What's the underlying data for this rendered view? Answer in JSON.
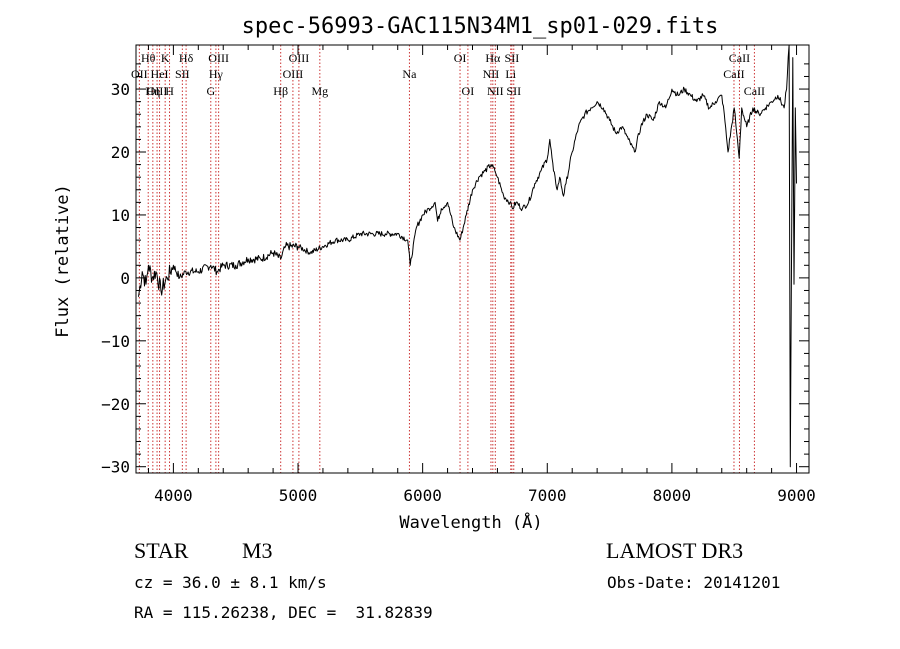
{
  "chart_data": {
    "type": "line",
    "title": "spec-56993-GAC115N34M1_sp01-029.fits",
    "xlabel": "Wavelength (Å)",
    "ylabel": "Flux (relative)",
    "xlim": [
      3700,
      9100
    ],
    "ylim": [
      -31,
      37
    ],
    "xticks": [
      4000,
      5000,
      6000,
      7000,
      8000,
      9000
    ],
    "yticks": [
      -30,
      -20,
      -10,
      0,
      10,
      20,
      30
    ],
    "ytick_labels": [
      "−30",
      "−20",
      "−10",
      "0",
      "10",
      "20",
      "30"
    ],
    "line_color": "#000000",
    "marker_color": "#cc3333",
    "series": [
      {
        "x": [
          3720,
          3750,
          3780,
          3800,
          3830,
          3860,
          3900,
          3950,
          4000,
          4050,
          4100,
          4200,
          4300,
          4350,
          4400,
          4500,
          4600,
          4700,
          4800,
          4860,
          4900,
          5000,
          5100,
          5200,
          5300,
          5400,
          5500,
          5600,
          5700,
          5800,
          5880,
          5900,
          5950,
          6000,
          6050,
          6100,
          6120,
          6150,
          6200,
          6250,
          6300,
          6350,
          6400,
          6450,
          6500,
          6550,
          6580,
          6600,
          6650,
          6700,
          6720,
          6750,
          6800,
          6850,
          6900,
          6950,
          7000,
          7020,
          7050,
          7080,
          7100,
          7130,
          7150,
          7200,
          7250,
          7300,
          7350,
          7400,
          7450,
          7500,
          7550,
          7600,
          7650,
          7700,
          7750,
          7800,
          7850,
          7900,
          7950,
          8000,
          8050,
          8100,
          8150,
          8200,
          8250,
          8300,
          8350,
          8400,
          8420,
          8450,
          8500,
          8520,
          8540,
          8560,
          8600,
          8650,
          8700,
          8750,
          8800,
          8850,
          8900,
          8920,
          8940,
          8950,
          8960,
          8970,
          8980,
          8990,
          9000
        ],
        "y": [
          -3,
          1,
          -1,
          2,
          0,
          1,
          -2,
          0,
          2,
          0,
          1,
          1,
          2,
          1,
          2,
          2,
          3,
          3,
          4,
          3,
          5,
          5,
          4,
          5,
          6,
          6,
          7,
          7,
          7,
          7,
          6,
          2,
          8,
          10,
          11,
          12,
          9,
          11,
          12,
          8,
          6,
          10,
          14,
          16,
          17,
          18,
          17,
          16,
          13,
          12,
          11,
          12,
          11,
          12,
          15,
          17,
          19,
          22,
          17,
          14,
          16,
          13,
          15,
          20,
          24,
          26,
          27,
          28,
          27,
          25,
          23,
          24,
          22,
          20,
          24,
          26,
          25,
          28,
          27,
          30,
          29,
          30,
          29,
          28,
          29,
          27,
          28,
          29,
          26,
          20,
          27,
          23,
          19,
          27,
          24,
          27,
          26,
          27,
          28,
          29,
          27,
          30,
          37,
          -30,
          5,
          35,
          -1,
          27,
          15
        ]
      }
    ],
    "lines": [
      {
        "x": 3727,
        "label": "OII",
        "row": 2
      },
      {
        "x": 3798,
        "label": "Hθ",
        "row": 1
      },
      {
        "x": 3835,
        "label": "Hη",
        "row": 3
      },
      {
        "x": 3869,
        "label": "OIII",
        "row": 3
      },
      {
        "x": 3889,
        "label": "HeI",
        "row": 2
      },
      {
        "x": 3934,
        "label": "K",
        "row": 1
      },
      {
        "x": 3969,
        "label": "H",
        "row": 3
      },
      {
        "x": 4072,
        "label": "SII",
        "row": 2
      },
      {
        "x": 4102,
        "label": "Hδ",
        "row": 1
      },
      {
        "x": 4300,
        "label": "G",
        "row": 3
      },
      {
        "x": 4341,
        "label": "Hγ",
        "row": 2
      },
      {
        "x": 4363,
        "label": "OIII",
        "row": 1
      },
      {
        "x": 4861,
        "label": "Hβ",
        "row": 3
      },
      {
        "x": 4959,
        "label": "OIII",
        "row": 2
      },
      {
        "x": 5007,
        "label": "OIII",
        "row": 1
      },
      {
        "x": 5175,
        "label": "Mg",
        "row": 3
      },
      {
        "x": 5894,
        "label": "Na",
        "row": 2
      },
      {
        "x": 6300,
        "label": "OI",
        "row": 1
      },
      {
        "x": 6363,
        "label": "OI",
        "row": 3
      },
      {
        "x": 6548,
        "label": "NII",
        "row": 2
      },
      {
        "x": 6563,
        "label": "Hα",
        "row": 1
      },
      {
        "x": 6583,
        "label": "NII",
        "row": 3
      },
      {
        "x": 6707,
        "label": "Li",
        "row": 2
      },
      {
        "x": 6716,
        "label": "SII",
        "row": 1
      },
      {
        "x": 6731,
        "label": "SII",
        "row": 3
      },
      {
        "x": 8498,
        "label": "CaII",
        "row": 2
      },
      {
        "x": 8542,
        "label": "CaII",
        "row": 1
      },
      {
        "x": 8662,
        "label": "CaII",
        "row": 3
      }
    ]
  },
  "info": {
    "class": "STAR",
    "subclass": "M3",
    "survey": "LAMOST DR3",
    "cz": "cz = 36.0 ± 8.1 km/s",
    "obsdate": "Obs-Date: 20141201",
    "radec": "RA = 115.26238, DEC =  31.82839"
  }
}
